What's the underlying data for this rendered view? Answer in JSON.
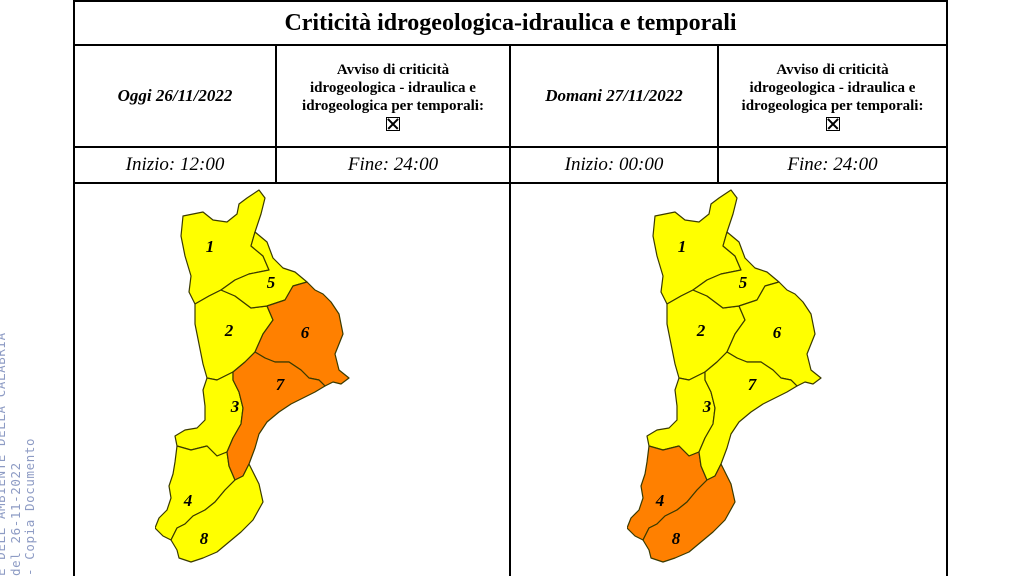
{
  "stamp": {
    "lines": [
      "E DELL'AMBIENTE DELLA CALABRIA",
      "del 26-11-2022",
      "- Copia Documento"
    ]
  },
  "title": "Criticità idrogeologica-idraulica e temporali",
  "left": {
    "day": "Oggi 26/11/2022",
    "avviso": [
      "Avviso di criticità",
      "idrogeologica - idraulica e",
      "idrogeologica per temporali:"
    ],
    "start": "Inizio: 12:00",
    "end": "Fine: 24:00",
    "regions": [
      {
        "id": "1",
        "color": "yellow"
      },
      {
        "id": "2",
        "color": "yellow"
      },
      {
        "id": "3",
        "color": "yellow"
      },
      {
        "id": "4",
        "color": "yellow"
      },
      {
        "id": "5",
        "color": "yellow"
      },
      {
        "id": "6",
        "color": "orange"
      },
      {
        "id": "7",
        "color": "orange"
      },
      {
        "id": "8",
        "color": "yellow"
      }
    ]
  },
  "right": {
    "day": "Domani 27/11/2022",
    "avviso": [
      "Avviso di criticità",
      "idrogeologica - idraulica e",
      "idrogeologica per temporali:"
    ],
    "start": "Inizio: 00:00",
    "end": "Fine: 24:00",
    "regions": [
      {
        "id": "1",
        "color": "yellow"
      },
      {
        "id": "2",
        "color": "yellow"
      },
      {
        "id": "3",
        "color": "yellow"
      },
      {
        "id": "4",
        "color": "orange"
      },
      {
        "id": "5",
        "color": "yellow"
      },
      {
        "id": "6",
        "color": "yellow"
      },
      {
        "id": "7",
        "color": "yellow"
      },
      {
        "id": "8",
        "color": "orange"
      }
    ]
  },
  "colors": {
    "yellow": "#ffff00",
    "orange": "#ff8000",
    "border": "#3a3a00"
  }
}
